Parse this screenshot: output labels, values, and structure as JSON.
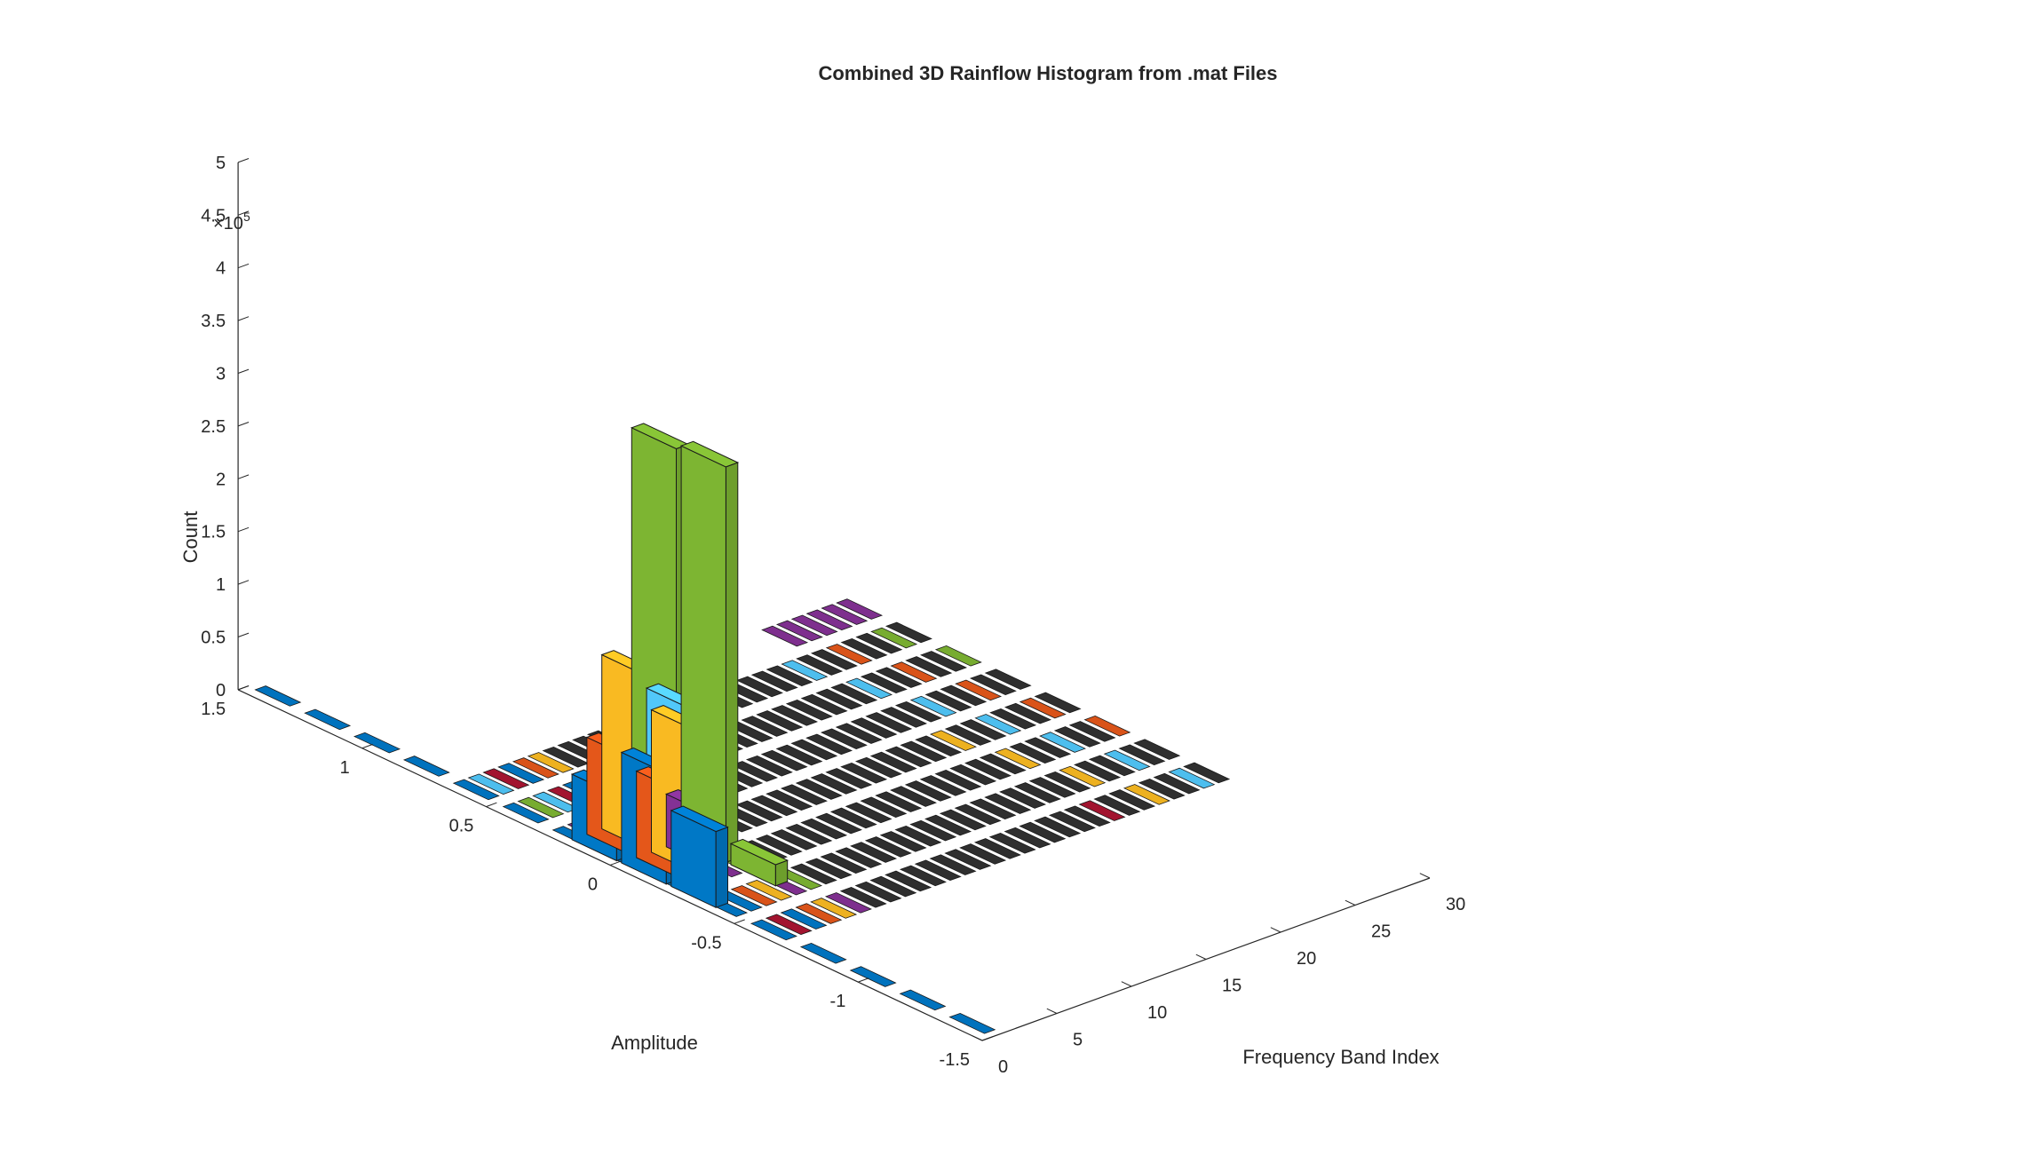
{
  "chart_data": {
    "type": "bar3",
    "title": "Combined 3D Rainflow Histogram from .mat Files",
    "xlabel": "Frequency Band Index",
    "ylabel": "Amplitude",
    "zlabel": "Count",
    "z_exponent_label": "×10",
    "z_exponent_power": "5",
    "xlim": [
      0,
      30
    ],
    "ylim": [
      -1.5,
      1.5
    ],
    "zlim": [
      0,
      500000
    ],
    "x_ticks": [
      "0",
      "5",
      "10",
      "15",
      "20",
      "25",
      "30"
    ],
    "y_ticks": [
      "1.5",
      "1",
      "0.5",
      "0",
      "-0.5",
      "-1",
      "-1.5"
    ],
    "z_ticks": [
      "0",
      "0.5",
      "1",
      "1.5",
      "2",
      "2.5",
      "3",
      "3.5",
      "4",
      "4.5",
      "5"
    ],
    "grid": false,
    "colors": {
      "blue": "#0072BD",
      "orange": "#D95319",
      "yellow": "#EDB120",
      "purple": "#7E2F8E",
      "green": "#77AC30",
      "cyan": "#4DBEEE",
      "red": "#A2142F",
      "dark": "#2f2f2f"
    },
    "bars": [
      {
        "band": 1,
        "amplitude": 0.1,
        "count": 62000,
        "color": "blue"
      },
      {
        "band": 1,
        "amplitude": -0.1,
        "count": 105000,
        "color": "blue"
      },
      {
        "band": 1,
        "amplitude": -0.3,
        "count": 72000,
        "color": "blue"
      },
      {
        "band": 2,
        "amplitude": 0.1,
        "count": 92000,
        "color": "orange"
      },
      {
        "band": 2,
        "amplitude": -0.1,
        "count": 82000,
        "color": "orange"
      },
      {
        "band": 3,
        "amplitude": 0.1,
        "count": 165000,
        "color": "yellow"
      },
      {
        "band": 3,
        "amplitude": -0.1,
        "count": 135000,
        "color": "yellow"
      },
      {
        "band": 4,
        "amplitude": -0.1,
        "count": 50000,
        "color": "purple"
      },
      {
        "band": 5,
        "amplitude": 0.1,
        "count": 370000,
        "color": "green"
      },
      {
        "band": 5,
        "amplitude": -0.1,
        "count": 375000,
        "color": "green"
      },
      {
        "band": 5,
        "amplitude": -0.3,
        "count": 20000,
        "color": "green"
      },
      {
        "band": 6,
        "amplitude": 0.1,
        "count": 118000,
        "color": "cyan"
      }
    ]
  }
}
